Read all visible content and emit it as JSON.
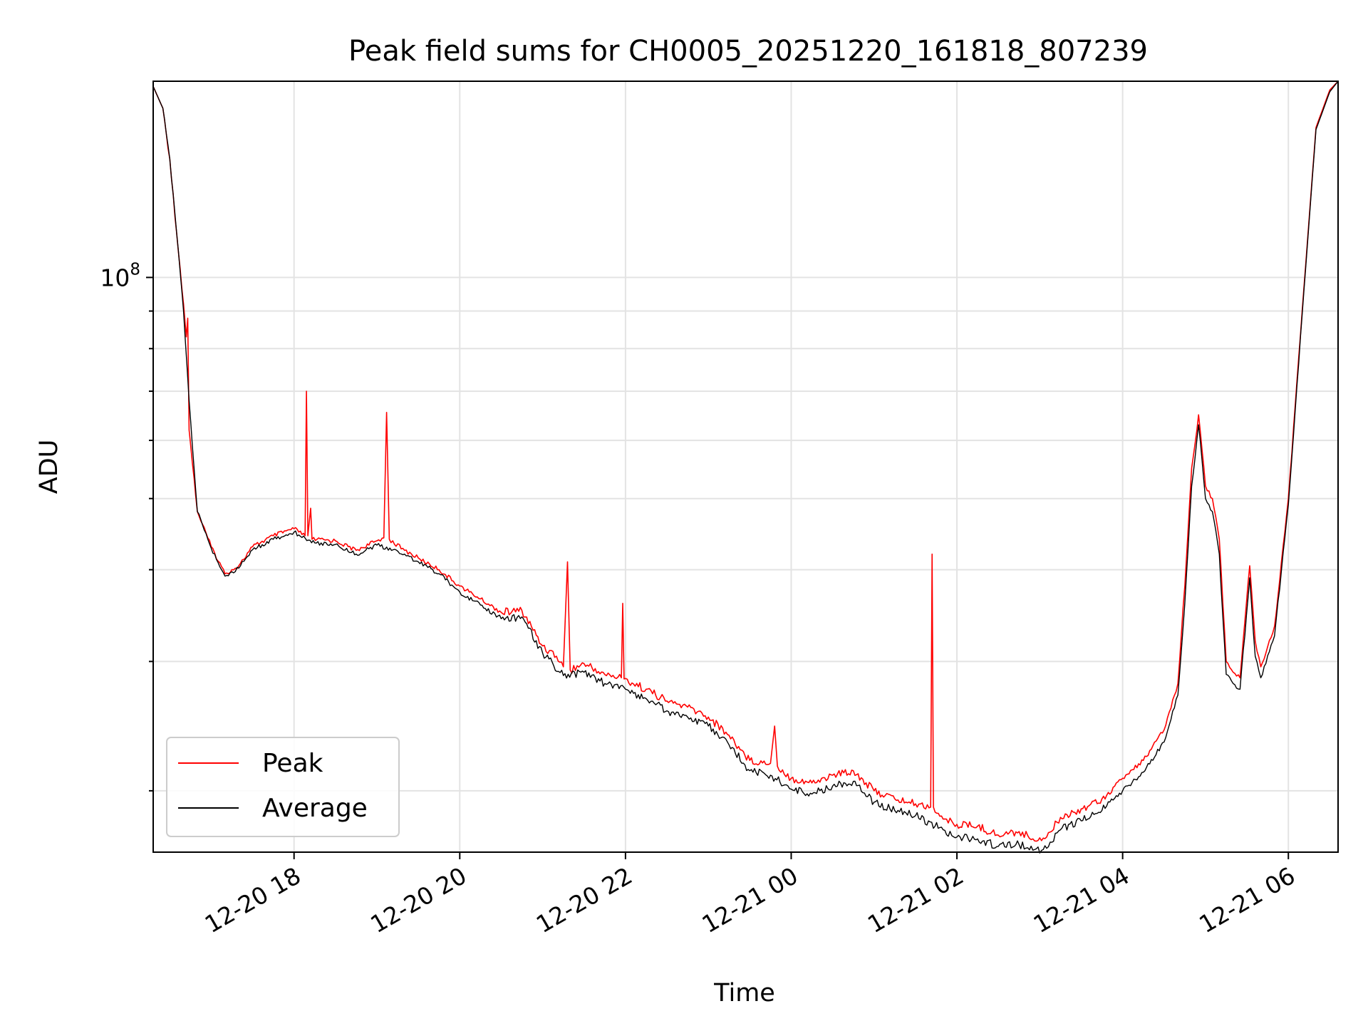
{
  "chart_data": {
    "type": "line",
    "title": "Peak field sums for CH0005_20251220_161818_807239",
    "xlabel": "Time",
    "ylabel": "ADU",
    "y_scale": "log",
    "ylim": [
      16500000,
      185000000
    ],
    "xlim": [
      "2025-12-20 16:18",
      "2025-12-21 06:36"
    ],
    "grid": true,
    "legend_position": "lower-left",
    "x_ticks": [
      {
        "value": "2025-12-20 18:00",
        "label": "12-20 18"
      },
      {
        "value": "2025-12-20 20:00",
        "label": "12-20 20"
      },
      {
        "value": "2025-12-20 22:00",
        "label": "12-20 22"
      },
      {
        "value": "2025-12-21 00:00",
        "label": "12-21 00"
      },
      {
        "value": "2025-12-21 02:00",
        "label": "12-21 02"
      },
      {
        "value": "2025-12-21 04:00",
        "label": "12-21 04"
      },
      {
        "value": "2025-12-21 06:00",
        "label": "12-21 06"
      }
    ],
    "y_major_ticks": [
      {
        "value": 100000000,
        "base": "10",
        "exp": "8"
      }
    ],
    "series": [
      {
        "name": "Peak",
        "color": "#ff0000",
        "points": [
          [
            "2025-12-20 16:18",
            182000000
          ],
          [
            "2025-12-20 16:25",
            170000000
          ],
          [
            "2025-12-20 16:30",
            145000000
          ],
          [
            "2025-12-20 16:35",
            115000000
          ],
          [
            "2025-12-20 16:40",
            92000000
          ],
          [
            "2025-12-20 16:42",
            83000000
          ],
          [
            "2025-12-20 16:43",
            88000000
          ],
          [
            "2025-12-20 16:44",
            62000000
          ],
          [
            "2025-12-20 16:50",
            48000000
          ],
          [
            "2025-12-20 17:00",
            43000000
          ],
          [
            "2025-12-20 17:10",
            39500000
          ],
          [
            "2025-12-20 17:20",
            40500000
          ],
          [
            "2025-12-20 17:30",
            43000000
          ],
          [
            "2025-12-20 17:45",
            44500000
          ],
          [
            "2025-12-20 18:00",
            45500000
          ],
          [
            "2025-12-20 18:08",
            44500000
          ],
          [
            "2025-12-20 18:09",
            70000000
          ],
          [
            "2025-12-20 18:10",
            44500000
          ],
          [
            "2025-12-20 18:12",
            48500000
          ],
          [
            "2025-12-20 18:13",
            44000000
          ],
          [
            "2025-12-20 18:30",
            43800000
          ],
          [
            "2025-12-20 18:45",
            42500000
          ],
          [
            "2025-12-20 19:00",
            43800000
          ],
          [
            "2025-12-20 19:05",
            44200000
          ],
          [
            "2025-12-20 19:07",
            65500000
          ],
          [
            "2025-12-20 19:09",
            44000000
          ],
          [
            "2025-12-20 19:20",
            42500000
          ],
          [
            "2025-12-20 19:30",
            41500000
          ],
          [
            "2025-12-20 19:45",
            40000000
          ],
          [
            "2025-12-20 20:00",
            38000000
          ],
          [
            "2025-12-20 20:15",
            36500000
          ],
          [
            "2025-12-20 20:30",
            35000000
          ],
          [
            "2025-12-20 20:45",
            35200000
          ],
          [
            "2025-12-20 21:00",
            31500000
          ],
          [
            "2025-12-20 21:10",
            30500000
          ],
          [
            "2025-12-20 21:15",
            29500000
          ],
          [
            "2025-12-20 21:18",
            41000000
          ],
          [
            "2025-12-20 21:20",
            29200000
          ],
          [
            "2025-12-20 21:30",
            29800000
          ],
          [
            "2025-12-20 21:45",
            28800000
          ],
          [
            "2025-12-20 21:57",
            28500000
          ],
          [
            "2025-12-20 21:58",
            36000000
          ],
          [
            "2025-12-20 21:59",
            28400000
          ],
          [
            "2025-12-20 22:15",
            27500000
          ],
          [
            "2025-12-20 22:30",
            26500000
          ],
          [
            "2025-12-20 22:45",
            26000000
          ],
          [
            "2025-12-20 23:00",
            25200000
          ],
          [
            "2025-12-20 23:15",
            23800000
          ],
          [
            "2025-12-20 23:30",
            22000000
          ],
          [
            "2025-12-20 23:45",
            21800000
          ],
          [
            "2025-12-20 23:48",
            24500000
          ],
          [
            "2025-12-20 23:50",
            21600000
          ],
          [
            "2025-12-21 00:00",
            20800000
          ],
          [
            "2025-12-21 00:15",
            20500000
          ],
          [
            "2025-12-21 00:30",
            21000000
          ],
          [
            "2025-12-21 00:45",
            21300000
          ],
          [
            "2025-12-21 01:00",
            20000000
          ],
          [
            "2025-12-21 01:15",
            19500000
          ],
          [
            "2025-12-21 01:30",
            19200000
          ],
          [
            "2025-12-21 01:41",
            19000000
          ],
          [
            "2025-12-21 01:42",
            42000000
          ],
          [
            "2025-12-21 01:43",
            19000000
          ],
          [
            "2025-12-21 01:50",
            18300000
          ],
          [
            "2025-12-21 02:00",
            18000000
          ],
          [
            "2025-12-21 02:15",
            17900000
          ],
          [
            "2025-12-21 02:30",
            17400000
          ],
          [
            "2025-12-21 02:45",
            17600000
          ],
          [
            "2025-12-21 02:55",
            17200000
          ],
          [
            "2025-12-21 03:05",
            17300000
          ],
          [
            "2025-12-21 03:15",
            18400000
          ],
          [
            "2025-12-21 03:30",
            18900000
          ],
          [
            "2025-12-21 03:45",
            19500000
          ],
          [
            "2025-12-21 04:00",
            20800000
          ],
          [
            "2025-12-21 04:15",
            22000000
          ],
          [
            "2025-12-21 04:30",
            24200000
          ],
          [
            "2025-12-21 04:40",
            28000000
          ],
          [
            "2025-12-21 04:45",
            38000000
          ],
          [
            "2025-12-21 04:50",
            55000000
          ],
          [
            "2025-12-21 04:55",
            65000000
          ],
          [
            "2025-12-21 05:00",
            52000000
          ],
          [
            "2025-12-21 05:05",
            50000000
          ],
          [
            "2025-12-21 05:10",
            44000000
          ],
          [
            "2025-12-21 05:15",
            30000000
          ],
          [
            "2025-12-21 05:20",
            29000000
          ],
          [
            "2025-12-21 05:25",
            28500000
          ],
          [
            "2025-12-21 05:32",
            40500000
          ],
          [
            "2025-12-21 05:36",
            32000000
          ],
          [
            "2025-12-21 05:40",
            29500000
          ],
          [
            "2025-12-21 05:50",
            33500000
          ],
          [
            "2025-12-21 06:00",
            50000000
          ],
          [
            "2025-12-21 06:10",
            90000000
          ],
          [
            "2025-12-21 06:20",
            160000000
          ],
          [
            "2025-12-21 06:30",
            180000000
          ],
          [
            "2025-12-21 06:36",
            185000000
          ]
        ]
      },
      {
        "name": "Average",
        "color": "#000000",
        "points": [
          [
            "2025-12-20 16:18",
            182000000
          ],
          [
            "2025-12-20 16:25",
            170000000
          ],
          [
            "2025-12-20 16:30",
            145000000
          ],
          [
            "2025-12-20 16:35",
            115000000
          ],
          [
            "2025-12-20 16:40",
            90000000
          ],
          [
            "2025-12-20 16:44",
            68000000
          ],
          [
            "2025-12-20 16:50",
            48000000
          ],
          [
            "2025-12-20 17:00",
            42800000
          ],
          [
            "2025-12-20 17:10",
            39200000
          ],
          [
            "2025-12-20 17:20",
            40200000
          ],
          [
            "2025-12-20 17:30",
            42600000
          ],
          [
            "2025-12-20 17:45",
            44000000
          ],
          [
            "2025-12-20 18:00",
            45000000
          ],
          [
            "2025-12-20 18:15",
            43500000
          ],
          [
            "2025-12-20 18:30",
            43300000
          ],
          [
            "2025-12-20 18:45",
            42000000
          ],
          [
            "2025-12-20 19:00",
            43200000
          ],
          [
            "2025-12-20 19:20",
            42000000
          ],
          [
            "2025-12-20 19:30",
            41000000
          ],
          [
            "2025-12-20 19:45",
            39500000
          ],
          [
            "2025-12-20 20:00",
            37300000
          ],
          [
            "2025-12-20 20:15",
            35800000
          ],
          [
            "2025-12-20 20:30",
            34300000
          ],
          [
            "2025-12-20 20:45",
            34500000
          ],
          [
            "2025-12-20 21:00",
            30800000
          ],
          [
            "2025-12-20 21:15",
            28700000
          ],
          [
            "2025-12-20 21:30",
            29000000
          ],
          [
            "2025-12-20 21:45",
            28000000
          ],
          [
            "2025-12-20 22:00",
            27500000
          ],
          [
            "2025-12-20 22:15",
            26700000
          ],
          [
            "2025-12-20 22:30",
            25700000
          ],
          [
            "2025-12-20 22:45",
            25200000
          ],
          [
            "2025-12-20 23:00",
            24500000
          ],
          [
            "2025-12-20 23:15",
            23100000
          ],
          [
            "2025-12-20 23:30",
            21300000
          ],
          [
            "2025-12-20 23:45",
            21000000
          ],
          [
            "2025-12-21 00:00",
            20100000
          ],
          [
            "2025-12-21 00:15",
            19800000
          ],
          [
            "2025-12-21 00:30",
            20300000
          ],
          [
            "2025-12-21 00:45",
            20600000
          ],
          [
            "2025-12-21 01:00",
            19300000
          ],
          [
            "2025-12-21 01:15",
            18800000
          ],
          [
            "2025-12-21 01:30",
            18500000
          ],
          [
            "2025-12-21 01:50",
            17700000
          ],
          [
            "2025-12-21 02:00",
            17300000
          ],
          [
            "2025-12-21 02:15",
            17200000
          ],
          [
            "2025-12-21 02:30",
            16800000
          ],
          [
            "2025-12-21 02:45",
            16900000
          ],
          [
            "2025-12-21 02:55",
            16600000
          ],
          [
            "2025-12-21 03:05",
            16700000
          ],
          [
            "2025-12-21 03:15",
            17700000
          ],
          [
            "2025-12-21 03:30",
            18200000
          ],
          [
            "2025-12-21 03:45",
            18800000
          ],
          [
            "2025-12-21 04:00",
            20000000
          ],
          [
            "2025-12-21 04:15",
            21200000
          ],
          [
            "2025-12-21 04:30",
            23300000
          ],
          [
            "2025-12-21 04:40",
            27000000
          ],
          [
            "2025-12-21 04:45",
            36000000
          ],
          [
            "2025-12-21 04:50",
            52000000
          ],
          [
            "2025-12-21 04:55",
            63000000
          ],
          [
            "2025-12-21 05:00",
            50000000
          ],
          [
            "2025-12-21 05:05",
            48000000
          ],
          [
            "2025-12-21 05:10",
            42000000
          ],
          [
            "2025-12-21 05:15",
            28800000
          ],
          [
            "2025-12-21 05:20",
            28000000
          ],
          [
            "2025-12-21 05:25",
            27500000
          ],
          [
            "2025-12-21 05:32",
            39000000
          ],
          [
            "2025-12-21 05:36",
            30500000
          ],
          [
            "2025-12-21 05:40",
            28500000
          ],
          [
            "2025-12-21 05:50",
            32500000
          ],
          [
            "2025-12-21 06:00",
            49000000
          ],
          [
            "2025-12-21 06:10",
            89000000
          ],
          [
            "2025-12-21 06:20",
            159000000
          ],
          [
            "2025-12-21 06:30",
            179000000
          ],
          [
            "2025-12-21 06:36",
            185000000
          ]
        ]
      }
    ]
  }
}
